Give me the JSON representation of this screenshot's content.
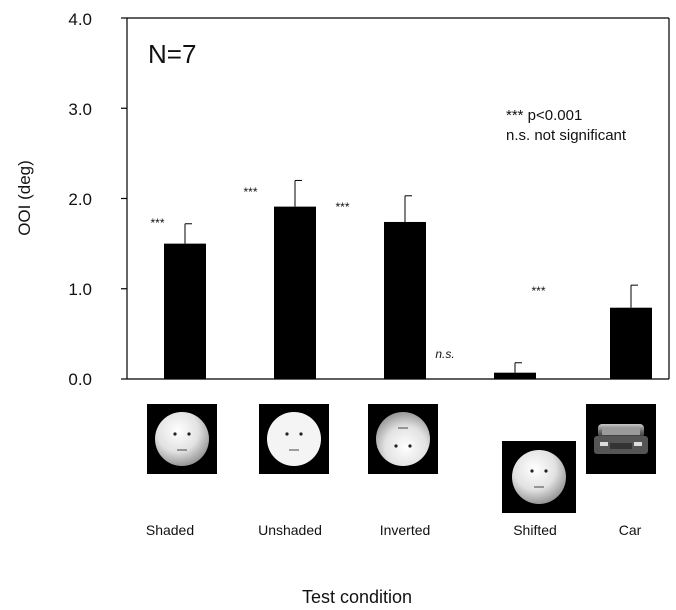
{
  "chart_data": {
    "type": "bar",
    "categories": [
      "Shaded",
      "Unshaded",
      "Inverted",
      "Shifted",
      "Car"
    ],
    "values": [
      1.5,
      1.91,
      1.74,
      0.07,
      0.79
    ],
    "errors": [
      0.22,
      0.29,
      0.29,
      0.11,
      0.25
    ],
    "ylabel": "OOI (deg)",
    "xlabel": "Test condition",
    "yticks": [
      "0.0",
      "1.0",
      "2.0",
      "3.0",
      "4.0"
    ],
    "ylim": [
      0,
      4
    ],
    "bar_color": "#000000",
    "annotations": {
      "n_label": "N=7",
      "legend_line1": "*** p<0.001",
      "legend_line2": "n.s. not significant",
      "sig_marks": [
        "***",
        "***",
        "***",
        "n.s.",
        "***"
      ]
    },
    "thumbnail_icons": [
      "shaded-face-icon",
      "unshaded-face-icon",
      "inverted-face-icon",
      "shifted-face-icon",
      "car-icon"
    ]
  }
}
